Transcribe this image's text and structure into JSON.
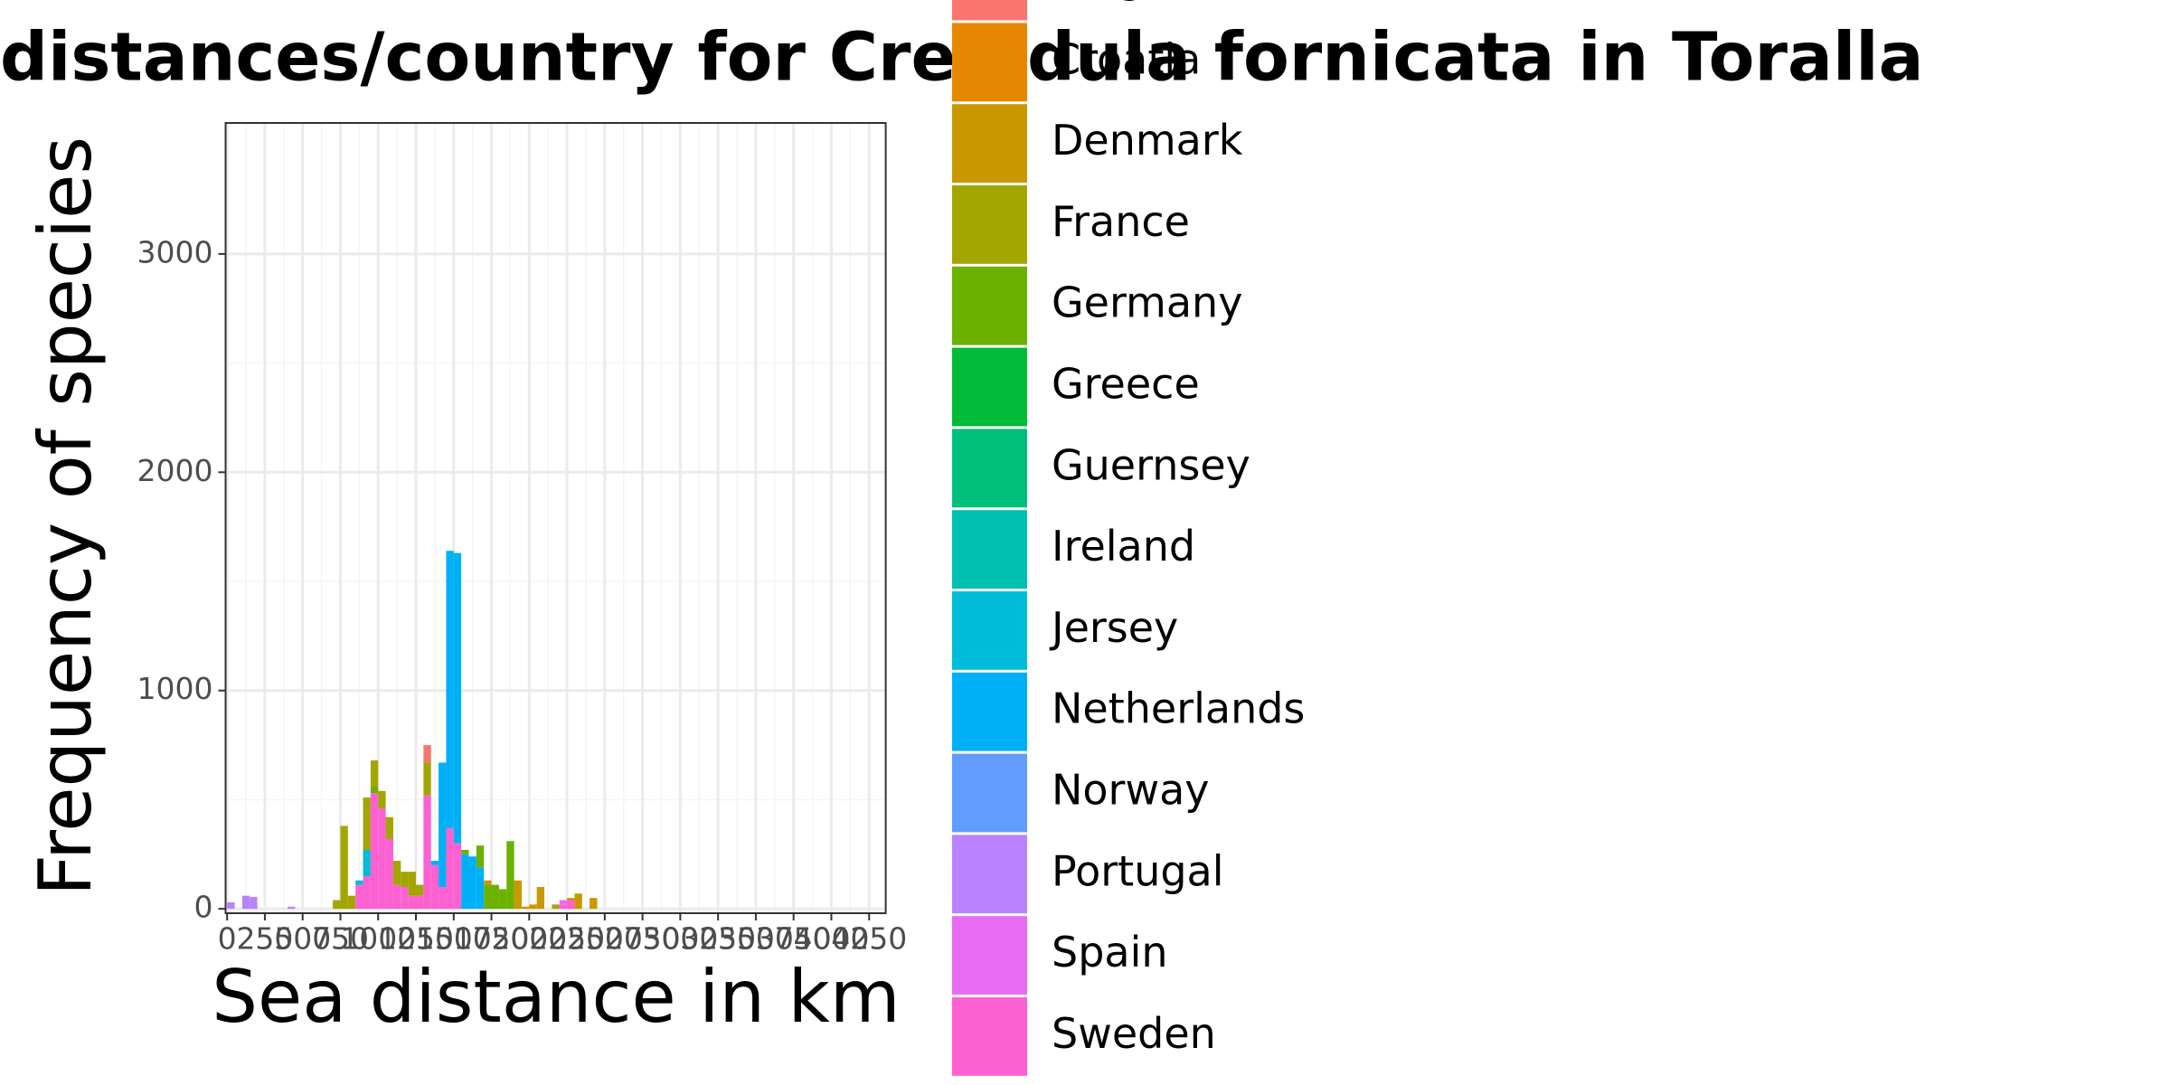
{
  "chart_data": {
    "type": "histogram",
    "stacked": true,
    "title": "distances/country for Crepidula fornicata in Toralla",
    "x_label": "Sea distance in km",
    "y_label": "Frequency of species",
    "xlim": [
      -10,
      4360
    ],
    "ylim": [
      -20,
      3600
    ],
    "xticks": [
      0,
      250,
      500,
      750,
      1000,
      1250,
      1500,
      1750,
      2000,
      2250,
      2500,
      2750,
      3000,
      3250,
      3500,
      3750,
      4000,
      4250
    ],
    "yticks": [
      0,
      1000,
      2000,
      3000
    ],
    "grid": true,
    "bins": [
      0,
      50,
      100,
      150,
      200,
      250,
      300,
      350,
      400,
      450,
      500,
      550,
      600,
      650,
      700,
      750,
      800,
      850,
      900,
      950,
      1000,
      1050,
      1100,
      1150,
      1200,
      1250,
      1300,
      1350,
      1400,
      1450,
      1500,
      1550,
      1600,
      1650,
      1700,
      1750,
      1800,
      1850,
      1900,
      1950,
      2000,
      2050,
      2100,
      2150,
      2200,
      2250,
      2300,
      2350,
      2400,
      2450,
      2500,
      2550,
      2600,
      2650,
      2700
    ],
    "series": [
      {
        "name": "Belgium",
        "color": "#F8766D",
        "values": [
          0,
          0,
          0,
          0,
          0,
          0,
          0,
          0,
          0,
          0,
          0,
          0,
          0,
          0,
          0,
          0,
          0,
          0,
          0,
          0,
          0,
          0,
          0,
          0,
          0,
          0,
          80,
          0,
          0,
          0,
          0,
          0,
          0,
          0,
          0,
          0,
          0,
          0,
          0,
          0,
          0,
          0,
          0,
          0,
          0,
          0,
          0,
          0,
          0,
          0,
          0,
          0,
          0,
          0
        ]
      },
      {
        "name": "Croatia",
        "color": "#E58700",
        "values": [
          0,
          0,
          0,
          0,
          0,
          0,
          0,
          0,
          0,
          0,
          0,
          0,
          0,
          0,
          0,
          0,
          0,
          0,
          0,
          0,
          0,
          0,
          0,
          0,
          0,
          0,
          0,
          0,
          0,
          0,
          0,
          0,
          0,
          0,
          0,
          0,
          0,
          0,
          0,
          0,
          0,
          0,
          0,
          0,
          0,
          0,
          0,
          0,
          0,
          0,
          0,
          0,
          0,
          0
        ]
      },
      {
        "name": "Denmark",
        "color": "#C99800",
        "values": [
          0,
          0,
          0,
          0,
          0,
          0,
          0,
          0,
          0,
          0,
          0,
          0,
          0,
          0,
          0,
          0,
          0,
          0,
          0,
          0,
          0,
          0,
          0,
          0,
          0,
          0,
          0,
          0,
          0,
          0,
          0,
          0,
          0,
          0,
          20,
          0,
          0,
          0,
          130,
          10,
          20,
          100,
          0,
          0,
          0,
          10,
          70,
          0,
          50,
          0,
          0,
          0,
          0,
          0
        ]
      },
      {
        "name": "France",
        "color": "#A3A500",
        "values": [
          0,
          0,
          0,
          0,
          0,
          0,
          0,
          0,
          0,
          0,
          0,
          0,
          0,
          0,
          40,
          380,
          60,
          0,
          240,
          120,
          80,
          100,
          110,
          70,
          110,
          50,
          150,
          0,
          0,
          0,
          0,
          0,
          0,
          0,
          0,
          0,
          0,
          0,
          0,
          0,
          0,
          0,
          0,
          20,
          0,
          0,
          0,
          0,
          0,
          0,
          0,
          0,
          0,
          0
        ]
      },
      {
        "name": "Germany",
        "color": "#6BB100",
        "values": [
          0,
          0,
          0,
          0,
          0,
          0,
          0,
          0,
          0,
          0,
          0,
          0,
          0,
          0,
          0,
          0,
          0,
          0,
          0,
          30,
          0,
          0,
          0,
          0,
          0,
          0,
          0,
          0,
          0,
          0,
          0,
          20,
          0,
          100,
          110,
          110,
          90,
          310,
          0,
          0,
          0,
          0,
          0,
          0,
          0,
          0,
          0,
          0,
          0,
          0,
          0,
          0,
          0,
          0
        ]
      },
      {
        "name": "Greece",
        "color": "#00BA38",
        "values": [
          0,
          0,
          0,
          0,
          0,
          0,
          0,
          0,
          0,
          0,
          0,
          0,
          0,
          0,
          0,
          0,
          0,
          0,
          0,
          0,
          0,
          0,
          0,
          0,
          0,
          0,
          0,
          0,
          0,
          0,
          0,
          0,
          0,
          0,
          0,
          0,
          0,
          0,
          0,
          0,
          0,
          0,
          0,
          0,
          0,
          0,
          0,
          0,
          0,
          0,
          0,
          0,
          0,
          0
        ]
      },
      {
        "name": "Guernsey",
        "color": "#00BF7D",
        "values": [
          0,
          0,
          0,
          0,
          0,
          0,
          0,
          0,
          0,
          0,
          0,
          0,
          0,
          0,
          0,
          0,
          0,
          0,
          0,
          0,
          0,
          0,
          0,
          0,
          0,
          0,
          0,
          0,
          0,
          0,
          0,
          0,
          0,
          0,
          0,
          0,
          0,
          0,
          0,
          0,
          0,
          0,
          0,
          0,
          0,
          0,
          0,
          0,
          0,
          0,
          0,
          0,
          0,
          0
        ]
      },
      {
        "name": "Ireland",
        "color": "#00C0AF",
        "values": [
          0,
          0,
          0,
          0,
          0,
          0,
          0,
          0,
          0,
          0,
          0,
          0,
          0,
          0,
          0,
          0,
          0,
          0,
          0,
          0,
          0,
          0,
          0,
          0,
          0,
          0,
          0,
          0,
          0,
          0,
          0,
          0,
          0,
          0,
          0,
          0,
          0,
          0,
          0,
          0,
          0,
          0,
          0,
          0,
          0,
          0,
          0,
          0,
          0,
          0,
          0,
          0,
          0,
          0
        ]
      },
      {
        "name": "Jersey",
        "color": "#00BCD8",
        "values": [
          0,
          0,
          0,
          0,
          0,
          0,
          0,
          0,
          0,
          0,
          0,
          0,
          0,
          0,
          0,
          0,
          0,
          20,
          120,
          0,
          0,
          0,
          0,
          0,
          0,
          0,
          0,
          0,
          0,
          0,
          0,
          0,
          0,
          0,
          0,
          0,
          0,
          0,
          0,
          0,
          0,
          0,
          0,
          0,
          0,
          0,
          0,
          0,
          0,
          0,
          0,
          0,
          0,
          0
        ]
      },
      {
        "name": "Netherlands",
        "color": "#00B0F6",
        "values": [
          0,
          0,
          0,
          0,
          0,
          0,
          0,
          0,
          0,
          0,
          0,
          0,
          0,
          0,
          0,
          0,
          0,
          0,
          0,
          0,
          0,
          0,
          0,
          0,
          0,
          0,
          0,
          20,
          570,
          1270,
          1330,
          250,
          240,
          190,
          0,
          0,
          0,
          0,
          0,
          0,
          0,
          0,
          0,
          0,
          0,
          0,
          0,
          0,
          0,
          0,
          0,
          0,
          0,
          0
        ]
      },
      {
        "name": "Norway",
        "color": "#619CFF",
        "values": [
          0,
          0,
          0,
          0,
          0,
          0,
          0,
          0,
          0,
          0,
          0,
          0,
          0,
          0,
          0,
          0,
          0,
          0,
          0,
          0,
          0,
          0,
          0,
          0,
          0,
          0,
          0,
          0,
          0,
          0,
          0,
          0,
          0,
          0,
          0,
          0,
          0,
          0,
          0,
          0,
          0,
          0,
          0,
          0,
          0,
          0,
          0,
          0,
          0,
          0,
          0,
          0,
          0,
          0
        ]
      },
      {
        "name": "Portugal",
        "color": "#B983FF",
        "values": [
          30,
          0,
          60,
          55,
          0,
          0,
          0,
          0,
          10,
          0,
          0,
          0,
          0,
          0,
          0,
          0,
          0,
          0,
          0,
          0,
          0,
          0,
          0,
          0,
          0,
          0,
          0,
          0,
          0,
          0,
          0,
          0,
          0,
          0,
          0,
          0,
          0,
          0,
          0,
          0,
          0,
          0,
          0,
          0,
          0,
          0,
          0,
          0,
          0,
          0,
          0,
          0,
          0,
          0
        ]
      },
      {
        "name": "Spain",
        "color": "#E76BF3",
        "values": [
          0,
          0,
          0,
          0,
          0,
          0,
          0,
          0,
          0,
          0,
          0,
          0,
          0,
          0,
          0,
          0,
          0,
          0,
          0,
          0,
          0,
          0,
          0,
          0,
          0,
          0,
          0,
          0,
          0,
          0,
          0,
          0,
          0,
          0,
          0,
          0,
          0,
          0,
          0,
          0,
          0,
          0,
          0,
          0,
          20,
          0,
          0,
          0,
          0,
          0,
          0,
          0,
          0,
          0
        ]
      },
      {
        "name": "Sweden",
        "color": "#FD61D1",
        "values": [
          0,
          0,
          0,
          0,
          0,
          0,
          0,
          0,
          0,
          0,
          0,
          0,
          0,
          0,
          0,
          0,
          0,
          110,
          150,
          530,
          460,
          320,
          110,
          100,
          60,
          60,
          520,
          200,
          100,
          370,
          300,
          0,
          0,
          0,
          0,
          0,
          0,
          0,
          0,
          0,
          0,
          0,
          0,
          0,
          20,
          40,
          0,
          0,
          0,
          0,
          0,
          0,
          0,
          0
        ]
      }
    ]
  }
}
